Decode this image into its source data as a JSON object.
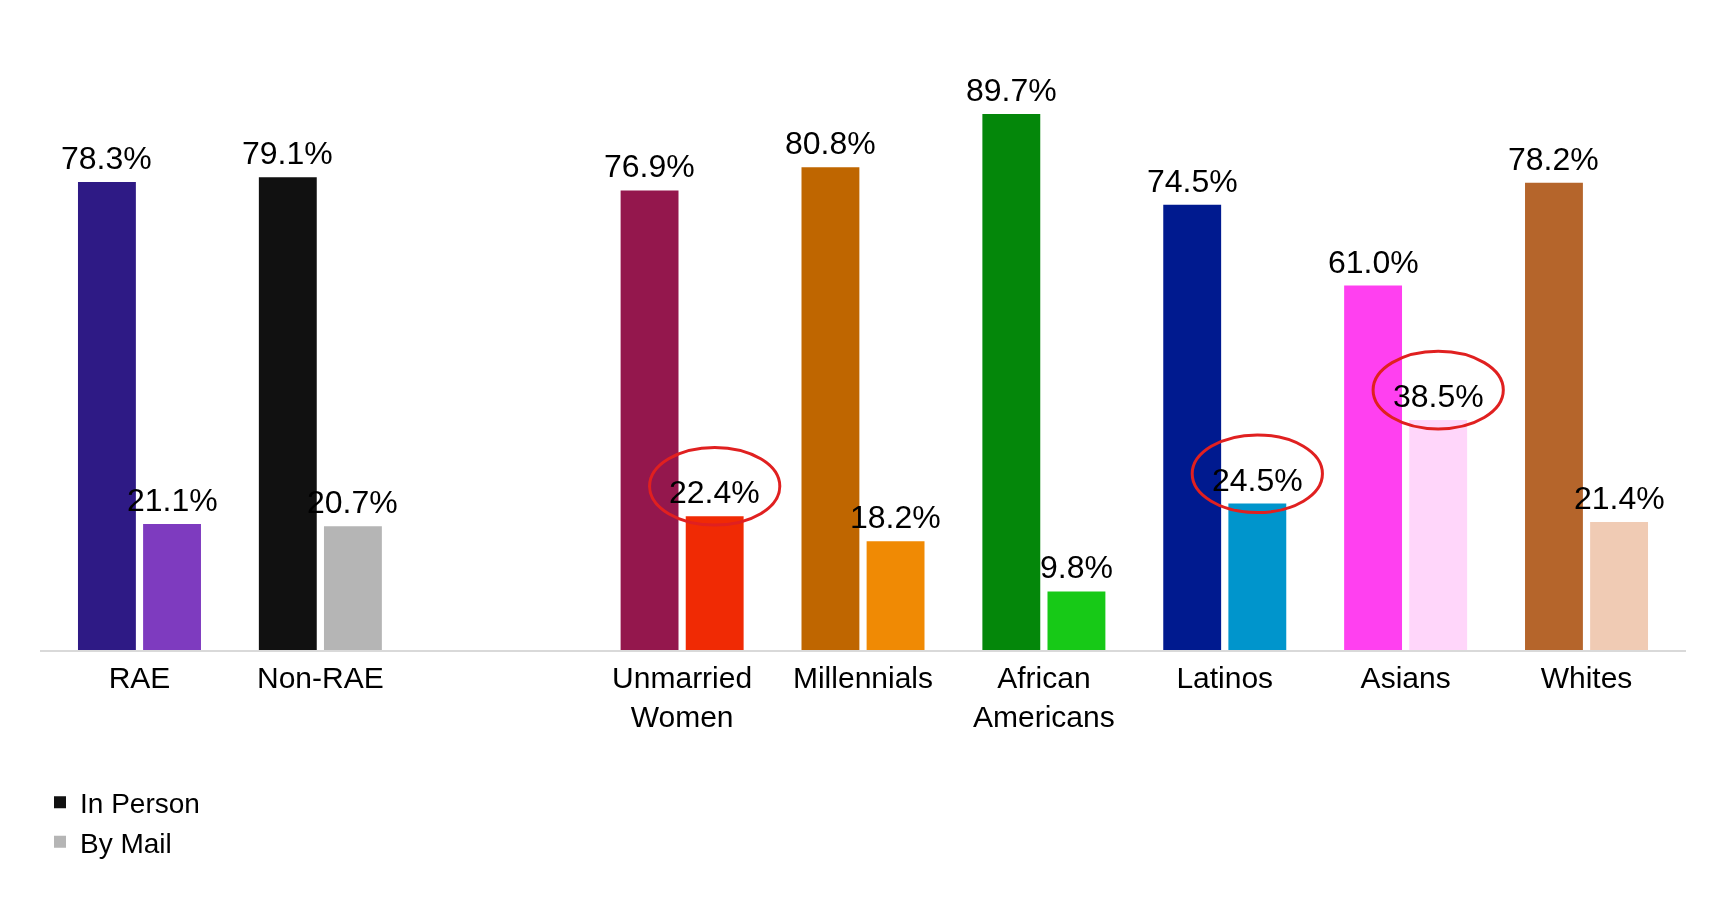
{
  "chart_data": {
    "type": "bar",
    "categories": [
      "RAE",
      "Non-RAE",
      null,
      "Unmarried Women",
      "Millennials",
      "African Americans",
      "Latinos",
      "Asians",
      "Whites"
    ],
    "series": [
      {
        "name": "In Person",
        "color": "#111111",
        "colors": [
          "#2e1a85",
          "#111111",
          null,
          "#94174d",
          "#bf6600",
          "#04870a",
          "#001a8f",
          "#ff40f0",
          "#b5652b"
        ],
        "values": [
          78.3,
          79.1,
          null,
          76.9,
          80.8,
          89.7,
          74.5,
          61.0,
          78.2
        ],
        "value_labels": [
          "78.3%",
          "79.1%",
          null,
          "76.9%",
          "80.8%",
          "89.7%",
          "74.5%",
          "61.0%",
          "78.2%"
        ]
      },
      {
        "name": "By Mail",
        "color": "#b5b5b5",
        "colors": [
          "#7e3bbf",
          "#b5b5b5",
          null,
          "#f02a04",
          "#f08a04",
          "#17c917",
          "#0095cc",
          "#ffd6fa",
          "#f0cbb4"
        ],
        "values": [
          21.1,
          20.7,
          null,
          22.4,
          18.2,
          9.8,
          24.5,
          38.5,
          21.4
        ],
        "value_labels": [
          "21.1%",
          "20.7%",
          null,
          "22.4%",
          "18.2%",
          "9.8%",
          "24.5%",
          "38.5%",
          "21.4%"
        ]
      }
    ],
    "legend": "bottom left"
  }
}
